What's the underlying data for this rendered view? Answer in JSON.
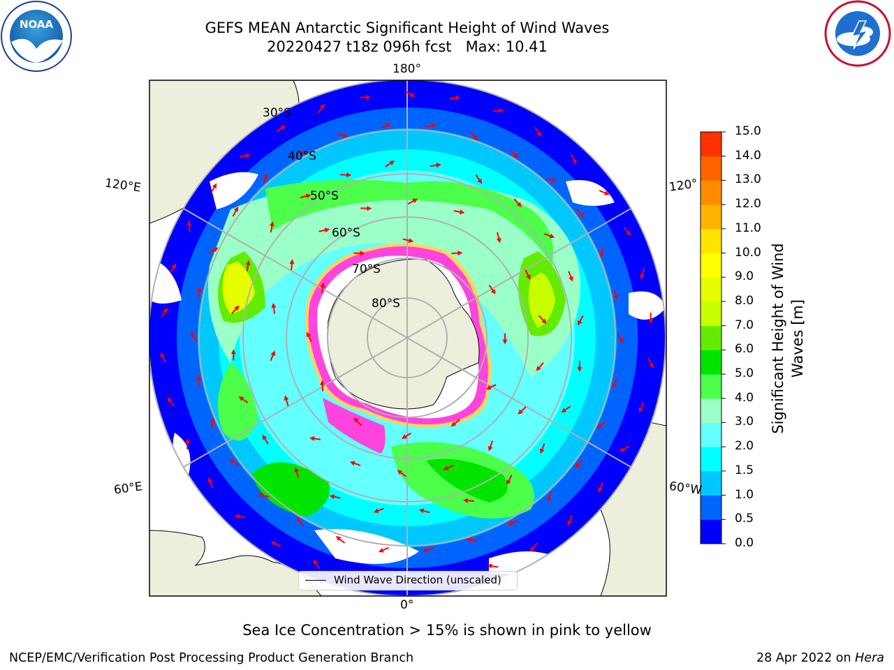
{
  "title": {
    "line1": "GEFS MEAN Antarctic Significant Height of Wind Waves",
    "line2": "20220427 t18z 096h fcst   Max: 10.41"
  },
  "logos": {
    "left": {
      "name": "NOAA logo",
      "text": "NOAA",
      "ring_text": "NATIONAL OCEANIC AND ATMOSPHERIC ADMINISTRATION · U.S. DEPARTMENT OF COMMERCE"
    },
    "right": {
      "name": "National Weather Service logo",
      "ring_text": "NATIONAL WEATHER SERVICE"
    }
  },
  "map": {
    "projection": "south polar stereographic",
    "longitude_labels": {
      "top": "180°",
      "bottom": "0°",
      "left_upper": "120°E",
      "left_lower": "60°E",
      "right_upper": "120°",
      "right_lower": "60°W"
    },
    "latitude_labels": [
      "30°S",
      "40°S",
      "50°S",
      "60°S",
      "70°S",
      "80°S"
    ],
    "land_color": "#eeeedd",
    "sea_ice_colors": [
      "#ff44dd",
      "#ffd35a"
    ],
    "arrow_color": "#ff0000"
  },
  "legend": {
    "label": "Wind Wave Direction (unscaled)"
  },
  "colorbar": {
    "title_line1": "Significant Height of Wind",
    "title_line2": "Waves [m]",
    "ticks": [
      "0.0",
      "0.5",
      "1.0",
      "1.5",
      "2.0",
      "3.0",
      "4.0",
      "5.0",
      "6.0",
      "7.0",
      "8.0",
      "9.0",
      "10.0",
      "11.0",
      "12.0",
      "13.0",
      "14.0",
      "15.0"
    ],
    "colors": [
      "#0000ff",
      "#0064ff",
      "#00c8ff",
      "#00ffff",
      "#64ffff",
      "#9bffc8",
      "#4bff4b",
      "#00e400",
      "#64ec00",
      "#c8ff00",
      "#e6ff00",
      "#ffff00",
      "#ffe400",
      "#ffb400",
      "#ff8c00",
      "#ff6400",
      "#ff3200"
    ]
  },
  "subtitle": "Sea Ice Concentration > 15% is shown in pink to yellow",
  "footer": {
    "left": "NCEP/EMC/Verification Post Processing Product Generation Branch",
    "right_prefix": "28 Apr 2022 on ",
    "right_host": "Hera"
  }
}
